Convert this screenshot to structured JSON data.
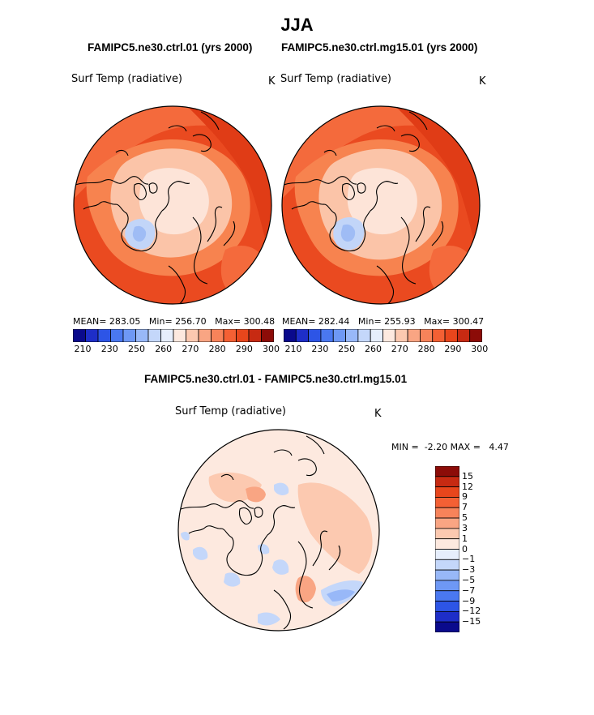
{
  "title": "JJA",
  "panels": [
    {
      "case": "FAMIPC5.ne30.ctrl.01 (yrs 2000)",
      "variable": "Surf Temp (radiative)",
      "units": "K",
      "stats": {
        "mean_label": "MEAN=",
        "mean": "283.05",
        "min_label": "Min=",
        "min": "256.70",
        "max_label": "Max=",
        "max": "300.48"
      }
    },
    {
      "case": "FAMIPC5.ne30.ctrl.mg15.01 (yrs 2000)",
      "variable": "Surf Temp (radiative)",
      "units": "K",
      "stats": {
        "mean_label": "MEAN=",
        "mean": "282.44",
        "min_label": "Min=",
        "min": "255.93",
        "max_label": "Max=",
        "max": "300.47"
      }
    }
  ],
  "colorbar_abs": {
    "colors": [
      "#0a0a8c",
      "#1e2ec8",
      "#2d55e6",
      "#4a78f0",
      "#6e98f5",
      "#98b8f8",
      "#c4d7fa",
      "#e6eefc",
      "#fde9df",
      "#fcc9b0",
      "#f9a583",
      "#f7835a",
      "#f46034",
      "#e8461c",
      "#c72a12",
      "#8c0c08"
    ],
    "tick_labels": [
      "210",
      "230",
      "250",
      "260",
      "270",
      "280",
      "290",
      "300"
    ]
  },
  "diff": {
    "title": "FAMIPC5.ne30.ctrl.01 - FAMIPC5.ne30.ctrl.mg15.01",
    "variable": "Surf Temp (radiative)",
    "units": "K",
    "min_label": "MIN =",
    "min": "-2.20",
    "max_label": "MAX =",
    "max": "4.47",
    "colorbar": {
      "colors_top_to_bottom": [
        "#8c0c08",
        "#c72a12",
        "#e8461c",
        "#f46034",
        "#f7835a",
        "#f9a583",
        "#fcc9b0",
        "#fde9df",
        "#e6eefc",
        "#c4d7fa",
        "#98b8f8",
        "#6e98f5",
        "#4a78f0",
        "#2d55e6",
        "#1e2ec8",
        "#0a0a8c"
      ],
      "tick_labels": [
        "15",
        "12",
        "9",
        "7",
        "5",
        "3",
        "1",
        "0",
        "−1",
        "−3",
        "−5",
        "−7",
        "−9",
        "−12",
        "−15"
      ]
    }
  }
}
